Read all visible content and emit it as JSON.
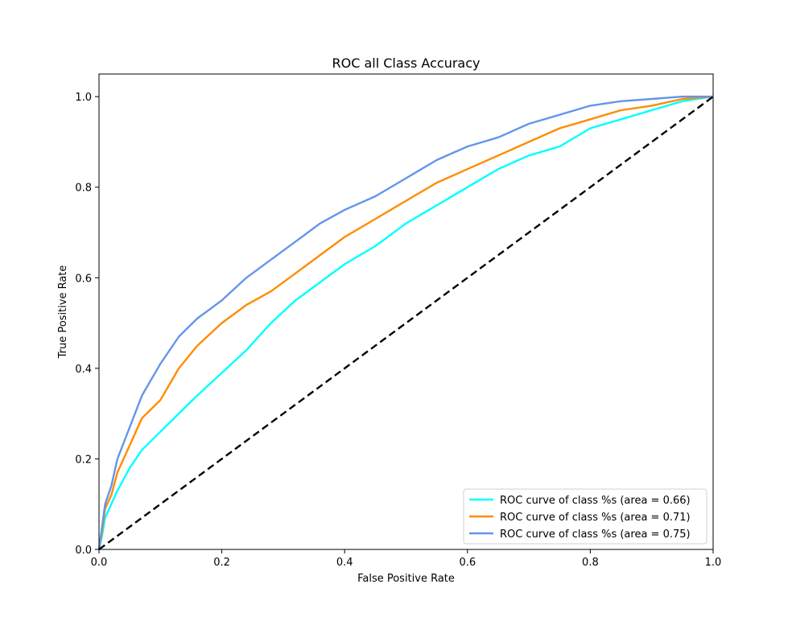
{
  "chart_data": {
    "type": "line",
    "title": "ROC all Class Accuracy",
    "xlabel": "False Positive Rate",
    "ylabel": "True Positive Rate",
    "xlim": [
      0.0,
      1.0
    ],
    "ylim": [
      0.0,
      1.05
    ],
    "xticks": [
      "0.0",
      "0.2",
      "0.4",
      "0.6",
      "0.8",
      "1.0"
    ],
    "yticks": [
      "0.0",
      "0.2",
      "0.4",
      "0.6",
      "0.8",
      "1.0"
    ],
    "grid": false,
    "legend_position": "bottom-right",
    "series": [
      {
        "name": "ROC curve of class %s (area = 0.66)",
        "color": "#00ffff",
        "x": [
          0.0,
          0.005,
          0.01,
          0.02,
          0.03,
          0.05,
          0.07,
          0.1,
          0.13,
          0.16,
          0.2,
          0.24,
          0.28,
          0.32,
          0.36,
          0.4,
          0.45,
          0.5,
          0.55,
          0.6,
          0.65,
          0.7,
          0.75,
          0.8,
          0.85,
          0.9,
          0.95,
          1.0
        ],
        "y": [
          0.0,
          0.03,
          0.07,
          0.1,
          0.13,
          0.18,
          0.22,
          0.26,
          0.3,
          0.34,
          0.39,
          0.44,
          0.5,
          0.55,
          0.59,
          0.63,
          0.67,
          0.72,
          0.76,
          0.8,
          0.84,
          0.87,
          0.89,
          0.93,
          0.95,
          0.97,
          0.99,
          1.0
        ]
      },
      {
        "name": "ROC curve of class %s (area = 0.71)",
        "color": "#ff8c00",
        "x": [
          0.0,
          0.005,
          0.01,
          0.02,
          0.03,
          0.05,
          0.07,
          0.1,
          0.13,
          0.16,
          0.2,
          0.24,
          0.28,
          0.32,
          0.36,
          0.4,
          0.45,
          0.5,
          0.55,
          0.6,
          0.65,
          0.7,
          0.75,
          0.8,
          0.85,
          0.9,
          0.95,
          1.0
        ],
        "y": [
          0.0,
          0.04,
          0.09,
          0.12,
          0.17,
          0.23,
          0.29,
          0.33,
          0.4,
          0.45,
          0.5,
          0.54,
          0.57,
          0.61,
          0.65,
          0.69,
          0.73,
          0.77,
          0.81,
          0.84,
          0.87,
          0.9,
          0.93,
          0.95,
          0.97,
          0.98,
          0.995,
          1.0
        ]
      },
      {
        "name": "ROC curve of class %s (area = 0.75)",
        "color": "#6495ed",
        "x": [
          0.0,
          0.005,
          0.01,
          0.02,
          0.03,
          0.05,
          0.07,
          0.1,
          0.13,
          0.16,
          0.2,
          0.24,
          0.28,
          0.32,
          0.36,
          0.4,
          0.45,
          0.5,
          0.55,
          0.6,
          0.65,
          0.7,
          0.75,
          0.8,
          0.85,
          0.9,
          0.95,
          1.0
        ],
        "y": [
          0.0,
          0.05,
          0.1,
          0.14,
          0.2,
          0.27,
          0.34,
          0.41,
          0.47,
          0.51,
          0.55,
          0.6,
          0.64,
          0.68,
          0.72,
          0.75,
          0.78,
          0.82,
          0.86,
          0.89,
          0.91,
          0.94,
          0.96,
          0.98,
          0.99,
          0.995,
          1.0,
          1.0
        ]
      }
    ],
    "reference_line": {
      "x": [
        0.0,
        1.0
      ],
      "y": [
        0.0,
        1.0
      ],
      "color": "#000000",
      "style": "dashed"
    }
  }
}
